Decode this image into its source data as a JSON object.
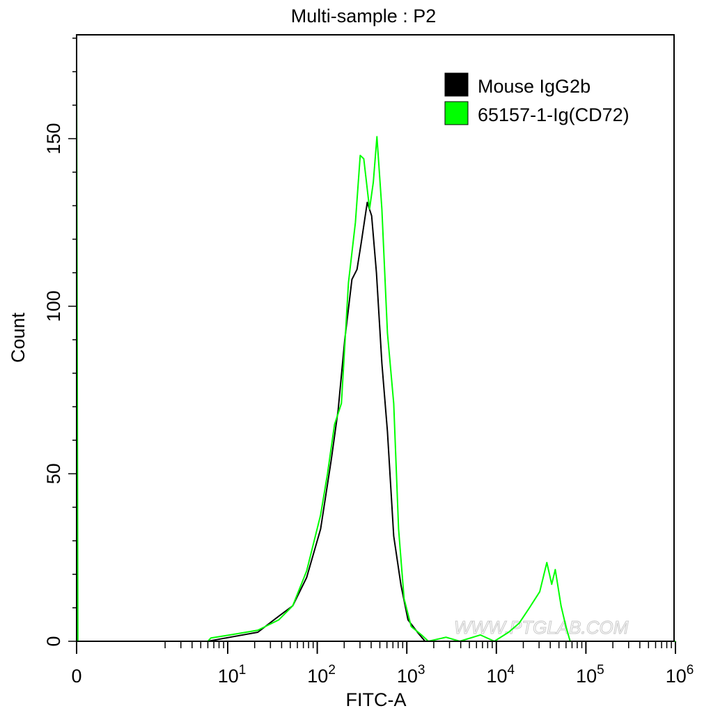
{
  "chart_data": {
    "type": "line",
    "title": "Multi-sample : P2",
    "xlabel": "FITC-A",
    "ylabel": "Count",
    "x_scale": "biexponential (log above 10)",
    "xlim": [
      0,
      1000000
    ],
    "ylim": [
      0,
      181
    ],
    "x_ticks": [
      {
        "value": 0,
        "base": "0",
        "exp": ""
      },
      {
        "value": 10,
        "base": "10",
        "exp": "1"
      },
      {
        "value": 100,
        "base": "10",
        "exp": "2"
      },
      {
        "value": 1000,
        "base": "10",
        "exp": "3"
      },
      {
        "value": 10000,
        "base": "10",
        "exp": "4"
      },
      {
        "value": 100000,
        "base": "10",
        "exp": "5"
      },
      {
        "value": 1000000,
        "base": "10",
        "exp": "6"
      }
    ],
    "y_ticks": [
      0,
      50,
      100,
      150
    ],
    "grid": false,
    "legend_position": "top-right",
    "series": [
      {
        "name": "Mouse IgG2b",
        "color": "#000000",
        "points": [
          [
            0,
            0
          ],
          [
            6,
            0
          ],
          [
            10.6,
            1.2
          ],
          [
            21.7,
            2.7
          ],
          [
            37.2,
            7.5
          ],
          [
            53.2,
            10.6
          ],
          [
            76,
            19
          ],
          [
            109,
            33.5
          ],
          [
            143,
            54
          ],
          [
            171,
            69
          ],
          [
            203,
            90
          ],
          [
            244,
            108
          ],
          [
            278,
            111
          ],
          [
            310,
            119
          ],
          [
            362,
            131
          ],
          [
            405,
            127
          ],
          [
            458,
            110
          ],
          [
            527,
            83
          ],
          [
            608,
            62.6
          ],
          [
            714,
            31.4
          ],
          [
            860,
            16.8
          ],
          [
            1030,
            6.4
          ],
          [
            1350,
            2.3
          ],
          [
            1600,
            0
          ],
          [
            1000000,
            0
          ]
        ]
      },
      {
        "name": "65157-1-Ig(CD72)",
        "color": "#00ff00",
        "points": [
          [
            0,
            173
          ],
          [
            0.02,
            0
          ],
          [
            6,
            0
          ],
          [
            6.5,
            1
          ],
          [
            10.6,
            1.9
          ],
          [
            21.7,
            3.3
          ],
          [
            37.2,
            6.4
          ],
          [
            53.2,
            10.6
          ],
          [
            76.2,
            21
          ],
          [
            109,
            37.7
          ],
          [
            130,
            50
          ],
          [
            156,
            64.7
          ],
          [
            186,
            71
          ],
          [
            223,
            107
          ],
          [
            267,
            125
          ],
          [
            302,
            145
          ],
          [
            331,
            144
          ],
          [
            384,
            129
          ],
          [
            423,
            137
          ],
          [
            464,
            150.6
          ],
          [
            527,
            129
          ],
          [
            608,
            92
          ],
          [
            714,
            71
          ],
          [
            809,
            33.5
          ],
          [
            933,
            12.7
          ],
          [
            1120,
            4.4
          ],
          [
            1460,
            1.9
          ],
          [
            1740,
            0
          ],
          [
            2740,
            1.2
          ],
          [
            3900,
            0
          ],
          [
            6630,
            1.9
          ],
          [
            9500,
            0
          ],
          [
            13700,
            2.7
          ],
          [
            18000,
            5.4
          ],
          [
            23400,
            10
          ],
          [
            30500,
            14.8
          ],
          [
            36600,
            23.5
          ],
          [
            41500,
            17
          ],
          [
            45500,
            21.4
          ],
          [
            52800,
            10.6
          ],
          [
            59800,
            4.4
          ],
          [
            66700,
            0
          ],
          [
            1000000,
            0
          ]
        ]
      }
    ],
    "watermark": "WWW.PTGLAB.COM"
  }
}
